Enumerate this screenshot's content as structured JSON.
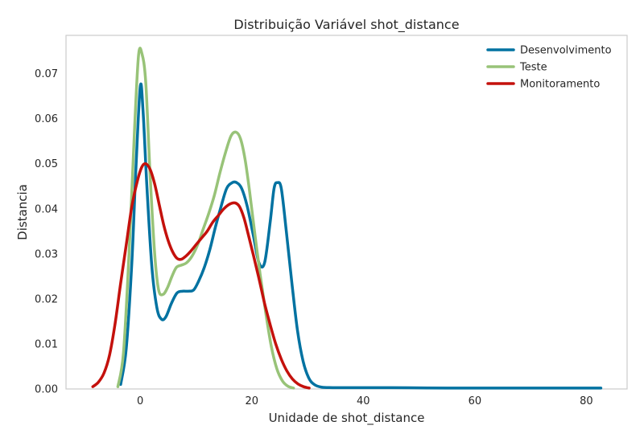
{
  "chart_data": {
    "type": "line",
    "title": "Distribuição Variável shot_distance",
    "xlabel": "Unidade de shot_distance",
    "ylabel": "Distancia",
    "xlim": [
      -13.3,
      87.3
    ],
    "ylim": [
      0,
      0.0785
    ],
    "xticks": [
      0,
      20,
      40,
      60,
      80
    ],
    "yticks": [
      0.0,
      0.01,
      0.02,
      0.03,
      0.04,
      0.05,
      0.06,
      0.07
    ],
    "xtick_labels": [
      "0",
      "20",
      "40",
      "60",
      "80"
    ],
    "ytick_labels": [
      "0.00",
      "0.01",
      "0.02",
      "0.03",
      "0.04",
      "0.05",
      "0.06",
      "0.07"
    ],
    "grid": false,
    "legend_position": "top-right",
    "series": [
      {
        "name": "Desenvolvimento",
        "color": "#0072a1",
        "x": [
          -3.5,
          -2.5,
          -1.5,
          -0.8,
          0,
          0.5,
          1.2,
          2.1,
          3.0,
          3.8,
          4.6,
          5.6,
          6.6,
          7.6,
          8.6,
          9.6,
          10.5,
          11.5,
          12.5,
          13.5,
          14.5,
          15.5,
          16.5,
          17.3,
          18.2,
          19.2,
          20.3,
          21.3,
          22.3,
          23.3,
          24.0,
          24.6,
          25.3,
          26.2,
          27.2,
          28.2,
          29.2,
          30.2,
          31.2,
          32.5,
          34.5,
          38,
          45,
          55,
          65,
          75,
          82.6
        ],
        "y": [
          0.001,
          0.009,
          0.028,
          0.048,
          0.067,
          0.062,
          0.045,
          0.027,
          0.018,
          0.0155,
          0.016,
          0.019,
          0.0213,
          0.0217,
          0.0217,
          0.022,
          0.024,
          0.027,
          0.031,
          0.036,
          0.0405,
          0.0445,
          0.0458,
          0.0458,
          0.0445,
          0.0405,
          0.034,
          0.028,
          0.028,
          0.037,
          0.0445,
          0.0458,
          0.0445,
          0.035,
          0.0235,
          0.013,
          0.0062,
          0.0025,
          0.001,
          0.0004,
          0.0003,
          0.0003,
          0.0003,
          0.0002,
          0.0002,
          0.0002,
          0.0002
        ]
      },
      {
        "name": "Teste",
        "color": "#98c378",
        "x": [
          -4,
          -3,
          -2,
          -1,
          -0.3,
          0.3,
          1.0,
          1.8,
          2.6,
          3.3,
          4.1,
          4.9,
          5.7,
          6.5,
          7.4,
          8.3,
          9.3,
          10.3,
          11.3,
          12.3,
          13.3,
          14.3,
          15.3,
          16.3,
          17.2,
          18.0,
          18.8,
          19.6,
          20.5,
          21.5,
          22.5,
          23.5,
          24.5,
          25.5,
          26.5,
          27.5
        ],
        "y": [
          0.0005,
          0.008,
          0.03,
          0.058,
          0.074,
          0.0745,
          0.068,
          0.047,
          0.03,
          0.022,
          0.021,
          0.0225,
          0.025,
          0.027,
          0.0275,
          0.028,
          0.0295,
          0.032,
          0.0355,
          0.039,
          0.043,
          0.048,
          0.0525,
          0.0562,
          0.057,
          0.0555,
          0.051,
          0.044,
          0.035,
          0.0255,
          0.017,
          0.0095,
          0.0045,
          0.0018,
          0.0006,
          0.0002
        ]
      },
      {
        "name": "Monitoramento",
        "color": "#c4110c",
        "x": [
          -8.5,
          -7.5,
          -6.5,
          -5.5,
          -4.5,
          -3.5,
          -2.5,
          -1.5,
          -0.5,
          0.3,
          1.0,
          1.8,
          2.6,
          3.4,
          4.2,
          5.0,
          5.8,
          6.6,
          7.4,
          8.2,
          9.0,
          10.0,
          11.0,
          12.0,
          13.0,
          14.0,
          15.0,
          16.0,
          17.0,
          17.8,
          18.6,
          19.4,
          20.3,
          21.3,
          22.3,
          23.3,
          24.3,
          25.3,
          26.3,
          27.3,
          28.3,
          29.3,
          30.3
        ],
        "y": [
          0.0005,
          0.0015,
          0.0035,
          0.0075,
          0.0145,
          0.0235,
          0.032,
          0.0405,
          0.0462,
          0.0493,
          0.05,
          0.0487,
          0.0455,
          0.041,
          0.0365,
          0.033,
          0.0305,
          0.029,
          0.0288,
          0.0295,
          0.0305,
          0.032,
          0.0335,
          0.035,
          0.037,
          0.0385,
          0.04,
          0.041,
          0.0413,
          0.0405,
          0.038,
          0.0342,
          0.0297,
          0.0245,
          0.019,
          0.0143,
          0.01,
          0.0066,
          0.004,
          0.0022,
          0.0011,
          0.0005,
          0.0002
        ]
      }
    ]
  }
}
